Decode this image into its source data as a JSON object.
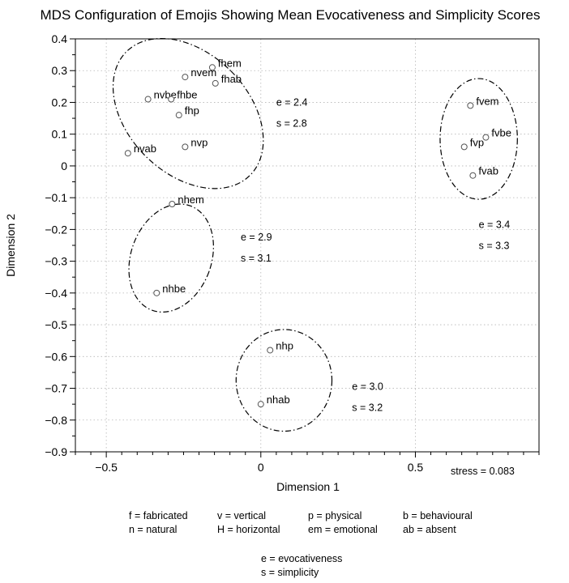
{
  "chart_data": {
    "type": "scatter",
    "title": "MDS Configuration of Emojis Showing Mean Evocativeness and Simplicity Scores",
    "xlabel": "Dimension 1",
    "ylabel": "Dimension 2",
    "xlim": [
      -0.6,
      0.9
    ],
    "ylim": [
      -0.9,
      0.4
    ],
    "x_ticks": [
      -0.5,
      0,
      0.5
    ],
    "x_tick_labels": [
      "−0.5",
      "0",
      "0.5"
    ],
    "y_ticks": [
      0.4,
      0.3,
      0.2,
      0.1,
      0,
      -0.1,
      -0.2,
      -0.3,
      -0.4,
      -0.5,
      -0.6,
      -0.7,
      -0.8,
      -0.9
    ],
    "y_tick_labels": [
      "0.4",
      "0.3",
      "0.2",
      "0.1",
      "0",
      "−0.1",
      "−0.2",
      "−0.3",
      "−0.4",
      "−0.5",
      "−0.6",
      "−0.7",
      "−0.8",
      "−0.9"
    ],
    "grid": true,
    "points": [
      {
        "label": "fhem",
        "x": -0.157,
        "y": 0.31
      },
      {
        "label": "nvem",
        "x": -0.245,
        "y": 0.28
      },
      {
        "label": "fhab",
        "x": -0.147,
        "y": 0.26
      },
      {
        "label": "nvbe",
        "x": -0.365,
        "y": 0.21
      },
      {
        "label": "fhbe",
        "x": -0.29,
        "y": 0.21
      },
      {
        "label": "fhp",
        "x": -0.265,
        "y": 0.16
      },
      {
        "label": "nvab",
        "x": -0.43,
        "y": 0.04
      },
      {
        "label": "nvp",
        "x": -0.245,
        "y": 0.06
      },
      {
        "label": "nhem",
        "x": -0.287,
        "y": -0.12
      },
      {
        "label": "nhbe",
        "x": -0.337,
        "y": -0.4
      },
      {
        "label": "nhp",
        "x": 0.03,
        "y": -0.58
      },
      {
        "label": "nhab",
        "x": 0.0,
        "y": -0.75
      },
      {
        "label": "fvem",
        "x": 0.678,
        "y": 0.19
      },
      {
        "label": "fvbe",
        "x": 0.728,
        "y": 0.09
      },
      {
        "label": "fvp",
        "x": 0.658,
        "y": 0.06
      },
      {
        "label": "fvab",
        "x": 0.686,
        "y": -0.03
      }
    ],
    "clusters": [
      {
        "cx": -0.235,
        "cy": 0.165,
        "rx": 0.195,
        "ry": 0.275,
        "angle": -45,
        "e_label": "e = 2.4",
        "s_label": "s = 2.8",
        "label_x": 0.05,
        "label_y": 0.19
      },
      {
        "cx": -0.29,
        "cy": -0.29,
        "rx": 0.13,
        "ry": 0.175,
        "angle": 20,
        "e_label": "e = 2.9",
        "s_label": "s = 3.1",
        "label_x": -0.065,
        "label_y": -0.235
      },
      {
        "cx": 0.075,
        "cy": -0.675,
        "rx": 0.155,
        "ry": 0.16,
        "angle": 0,
        "e_label": "e = 3.0",
        "s_label": "s = 3.2",
        "label_x": 0.295,
        "label_y": -0.705
      },
      {
        "cx": 0.705,
        "cy": 0.085,
        "rx": 0.125,
        "ry": 0.19,
        "angle": 0,
        "e_label": "e = 3.4",
        "s_label": "s = 3.3",
        "label_x": 0.705,
        "label_y": -0.195
      }
    ],
    "stress_label": "stress = 0.083",
    "legend": {
      "rows": [
        [
          "f = fabricated",
          "v = vertical",
          "p = physical",
          "b = behavioural"
        ],
        [
          "n = natural",
          "H = horizontal",
          "em = emotional",
          "ab = absent"
        ]
      ],
      "notes": [
        "e = evocativeness",
        "s = simplicity"
      ]
    }
  }
}
